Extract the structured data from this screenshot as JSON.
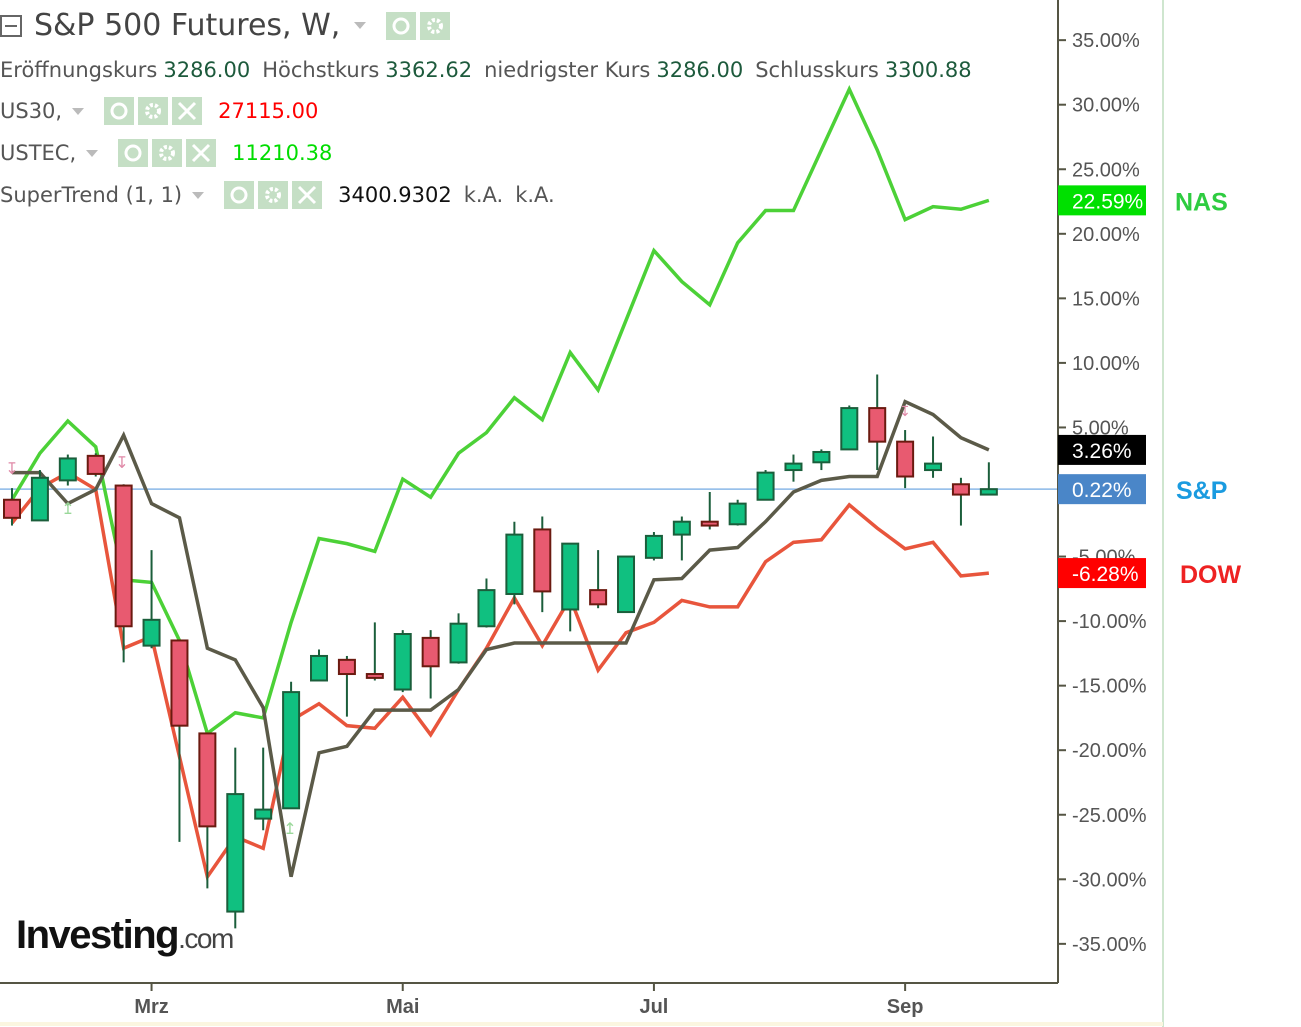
{
  "header": {
    "title": "S&P 500 Futures, W,",
    "ohlc": [
      {
        "label": "Eröffnungskurs",
        "value": "3286.00"
      },
      {
        "label": "Höchstkurs",
        "value": "3362.62"
      },
      {
        "label": "niedrigster Kurs",
        "value": "3286.00"
      },
      {
        "label": "Schlusskurs",
        "value": "3300.88"
      }
    ],
    "overlays": [
      {
        "name": "US30,",
        "value": "27115.00",
        "color": "#ff0000"
      },
      {
        "name": "USTEC,",
        "value": "11210.38",
        "color": "#00dd00"
      },
      {
        "name": "SuperTrend (1, 1)",
        "value": "3400.9302",
        "extra1": "k.A.",
        "extra2": "k.A.",
        "color": "#111111"
      }
    ]
  },
  "logo": "Investing.com",
  "chart_data": {
    "type": "candlestick+line",
    "x_tick_labels": [
      {
        "index": 5,
        "label": "Mrz"
      },
      {
        "index": 14,
        "label": "Mai"
      },
      {
        "index": 23,
        "label": "Jul"
      },
      {
        "index": 32,
        "label": "Sep"
      }
    ],
    "ylim": [
      -38,
      38
    ],
    "y_ticks": [
      35,
      30,
      25,
      20,
      15,
      10,
      5,
      -5,
      -10,
      -15,
      -20,
      -25,
      -30,
      -35
    ],
    "y_tick_format": "%",
    "grid": false,
    "baseline": 0.22,
    "candles": [
      [
        -0.6,
        0.3,
        -2.6,
        -2.0
      ],
      [
        -2.2,
        1.7,
        -2.2,
        1.1
      ],
      [
        0.9,
        2.9,
        0.5,
        2.6
      ],
      [
        2.8,
        3.0,
        1.2,
        1.4
      ],
      [
        0.5,
        0.6,
        -13.2,
        -10.4
      ],
      [
        -11.9,
        -4.5,
        -12.1,
        -9.9
      ],
      [
        -11.5,
        -11.5,
        -27.1,
        -18.1
      ],
      [
        -18.7,
        -18.7,
        -30.7,
        -25.9
      ],
      [
        -32.5,
        -19.8,
        -33.8,
        -23.4
      ],
      [
        -25.3,
        -19.8,
        -26.2,
        -24.6
      ],
      [
        -24.5,
        -14.7,
        -24.5,
        -15.5
      ],
      [
        -14.6,
        -12.2,
        -14.6,
        -12.7
      ],
      [
        -13.0,
        -12.7,
        -17.4,
        -14.1
      ],
      [
        -14.1,
        -10.1,
        -14.6,
        -14.4
      ],
      [
        -15.3,
        -10.7,
        -15.5,
        -11.0
      ],
      [
        -11.3,
        -10.7,
        -16.0,
        -13.5
      ],
      [
        -13.2,
        -9.4,
        -13.3,
        -10.2
      ],
      [
        -10.4,
        -6.7,
        -10.5,
        -7.6
      ],
      [
        -7.9,
        -2.3,
        -8.7,
        -3.3
      ],
      [
        -2.9,
        -1.9,
        -9.3,
        -7.7
      ],
      [
        -9.1,
        -4.0,
        -10.8,
        -4.0
      ],
      [
        -7.6,
        -4.5,
        -9.0,
        -8.7
      ],
      [
        -9.3,
        -5.0,
        -9.3,
        -5.0
      ],
      [
        -5.1,
        -3.1,
        -5.3,
        -3.4
      ],
      [
        -3.3,
        -1.9,
        -5.3,
        -2.3
      ],
      [
        -2.3,
        0.0,
        -2.9,
        -2.6
      ],
      [
        -2.5,
        -0.6,
        -2.6,
        -0.9
      ],
      [
        -0.6,
        1.7,
        -0.6,
        1.5
      ],
      [
        1.7,
        2.9,
        0.8,
        2.2
      ],
      [
        2.3,
        3.3,
        1.7,
        3.1
      ],
      [
        3.3,
        6.7,
        3.3,
        6.5
      ],
      [
        6.5,
        9.1,
        1.7,
        3.9
      ],
      [
        3.9,
        4.8,
        0.3,
        1.2
      ],
      [
        1.7,
        4.3,
        1.1,
        2.2
      ],
      [
        0.6,
        1.1,
        -2.6,
        -0.2
      ],
      [
        -0.2,
        2.3,
        -0.2,
        0.22
      ]
    ],
    "candle_fields": [
      "open",
      "high",
      "low",
      "close"
    ],
    "series": [
      {
        "name": "NAS",
        "color": "#4cd137",
        "label_color": "#2ecc40",
        "badge_color": "#00e000",
        "last": "22.59%",
        "values": [
          -0.6,
          3.0,
          5.5,
          3.5,
          -6.8,
          -7.0,
          -11.5,
          -18.7,
          -17.1,
          -17.5,
          -10.1,
          -3.6,
          -4.0,
          -4.6,
          1.0,
          -0.4,
          3.0,
          4.6,
          7.3,
          5.6,
          10.8,
          7.9,
          13.3,
          18.7,
          16.3,
          14.5,
          19.3,
          21.8,
          21.8,
          26.5,
          31.2,
          26.5,
          21.1,
          22.1,
          21.9,
          22.59
        ]
      },
      {
        "name": "DOW",
        "color": "#e8553c",
        "label_color": "#ee2222",
        "badge_color": "#ff0000",
        "last": "-6.28%",
        "values": [
          -2.4,
          0.3,
          1.5,
          0.2,
          -12.1,
          -11.2,
          -20.5,
          -29.8,
          -26.7,
          -27.6,
          -17.7,
          -16.4,
          -18.1,
          -18.3,
          -15.9,
          -18.8,
          -15.3,
          -12.1,
          -8.2,
          -11.9,
          -8.2,
          -13.8,
          -10.9,
          -10.1,
          -8.4,
          -8.9,
          -8.9,
          -5.4,
          -3.9,
          -3.7,
          -1.0,
          -2.8,
          -4.4,
          -3.9,
          -6.5,
          -6.28
        ]
      },
      {
        "name": "",
        "color": "#5b5a48",
        "badge_color": "#000000",
        "last": "3.26%",
        "values": [
          1.5,
          1.5,
          -0.9,
          0.2,
          4.4,
          -0.9,
          -2.0,
          -12.1,
          -13.0,
          -16.7,
          -29.8,
          -20.2,
          -19.7,
          -16.9,
          -16.9,
          -16.9,
          -15.3,
          -12.2,
          -11.7,
          -11.7,
          -11.7,
          -11.7,
          -11.7,
          -6.8,
          -6.7,
          -4.5,
          -4.3,
          -2.3,
          0.0,
          0.9,
          1.2,
          1.2,
          7.0,
          6.0,
          4.2,
          3.26
        ]
      }
    ],
    "sp_label": {
      "name": "S&P",
      "color": "#1a9be0",
      "badge_color": "#4a86c8",
      "last": "0.22%"
    },
    "colors": {
      "up": "#10c080",
      "down": "#e85a70",
      "up_border": "#1b5e3b",
      "down_border": "#6b1a10",
      "axis": "#555544"
    }
  }
}
